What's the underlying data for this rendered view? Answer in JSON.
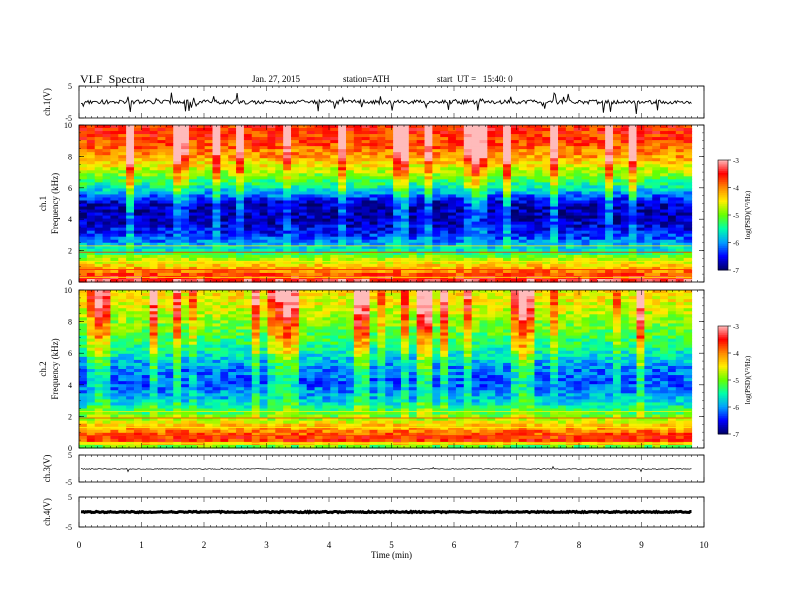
{
  "header": {
    "title": "VLF  Spectra",
    "date": "Jan. 27, 2015",
    "station": "station=ATH",
    "start": "start  UT =   15:40: 0"
  },
  "chart_data": [
    {
      "type": "line",
      "panel": "ch1-waveform",
      "ylabel": "ch.1(V)",
      "ylim": [
        -5,
        5
      ],
      "yticks": [
        "5",
        "-5"
      ],
      "xlim": [
        0,
        10
      ],
      "baseline": 0
    },
    {
      "type": "heatmap",
      "panel": "ch1-spectrogram",
      "ylabel_channel": "ch.1",
      "ylabel": "Frequency  (kHz)",
      "ylim": [
        0,
        10
      ],
      "yticks": [
        "0",
        "2",
        "4",
        "6",
        "8",
        "10"
      ],
      "xlim": [
        0,
        10
      ],
      "data_end_min": 9.8,
      "colorbar": {
        "label": "log(PSD)(V²/Hz)",
        "range": [
          -7,
          -3
        ],
        "ticks": [
          "-3",
          "-4",
          "-5",
          "-6",
          "-7"
        ]
      },
      "profile_by_kHz": [
        {
          "f": 0.0,
          "level": -3.2
        },
        {
          "f": 0.5,
          "level": -3.8
        },
        {
          "f": 1.0,
          "level": -4.3
        },
        {
          "f": 1.5,
          "level": -4.8
        },
        {
          "f": 2.0,
          "level": -5.6
        },
        {
          "f": 3.0,
          "level": -6.4
        },
        {
          "f": 4.0,
          "level": -6.8
        },
        {
          "f": 5.0,
          "level": -6.7
        },
        {
          "f": 6.0,
          "level": -5.6
        },
        {
          "f": 7.0,
          "level": -4.8
        },
        {
          "f": 8.0,
          "level": -4.1
        },
        {
          "f": 9.0,
          "level": -3.7
        },
        {
          "f": 10.0,
          "level": -3.6
        }
      ]
    },
    {
      "type": "heatmap",
      "panel": "ch2-spectrogram",
      "ylabel_channel": "ch.2",
      "ylabel": "Frequency  (kHz)",
      "ylim": [
        0,
        10
      ],
      "yticks": [
        "0",
        "2",
        "4",
        "6",
        "8",
        "10"
      ],
      "xlim": [
        0,
        10
      ],
      "data_end_min": 9.8,
      "colorbar": {
        "label": "log(PSD)(V²/Hz)",
        "range": [
          -7,
          -3
        ],
        "ticks": [
          "-3",
          "-4",
          "-5",
          "-6",
          "-7"
        ]
      },
      "profile_by_kHz": [
        {
          "f": 0.0,
          "level": -5.4
        },
        {
          "f": 0.5,
          "level": -3.6
        },
        {
          "f": 1.0,
          "level": -3.9
        },
        {
          "f": 1.5,
          "level": -4.4
        },
        {
          "f": 2.0,
          "level": -5.0
        },
        {
          "f": 3.0,
          "level": -5.8
        },
        {
          "f": 4.0,
          "level": -6.2
        },
        {
          "f": 5.0,
          "level": -6.1
        },
        {
          "f": 6.0,
          "level": -5.6
        },
        {
          "f": 7.0,
          "level": -5.2
        },
        {
          "f": 8.0,
          "level": -4.9
        },
        {
          "f": 9.0,
          "level": -4.6
        },
        {
          "f": 10.0,
          "level": -4.4
        }
      ]
    },
    {
      "type": "line",
      "panel": "ch3-waveform",
      "ylabel": "ch.3(V)",
      "ylim": [
        -5,
        5
      ],
      "yticks": [
        "5",
        "-5"
      ],
      "xlim": [
        0,
        10
      ],
      "baseline": 0
    },
    {
      "type": "line",
      "panel": "ch4-waveform",
      "ylabel": "ch.4(V)",
      "ylim": [
        -5,
        5
      ],
      "yticks": [
        "5",
        "-5"
      ],
      "xlim": [
        0,
        10
      ],
      "baseline": 0
    }
  ],
  "xaxis": {
    "label": "Time  (min)",
    "ticks": [
      "0",
      "1",
      "2",
      "3",
      "4",
      "5",
      "6",
      "7",
      "8",
      "9",
      "10"
    ]
  },
  "colors": {
    "colormap": [
      "#000066",
      "#0000ff",
      "#00a0ff",
      "#00ffaa",
      "#66ff00",
      "#ffee00",
      "#ff8800",
      "#ff0000",
      "#ffbbbb"
    ]
  }
}
